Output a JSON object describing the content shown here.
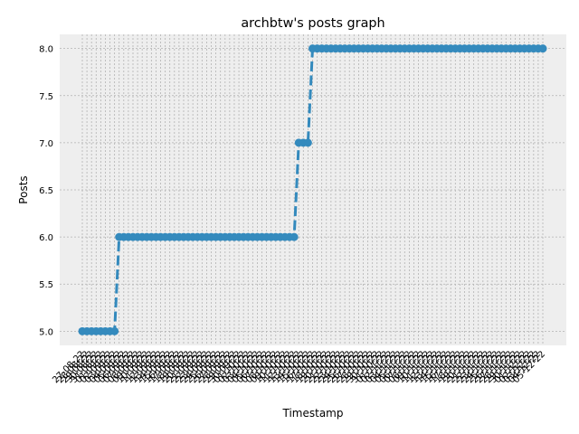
{
  "chart_data": {
    "type": "line",
    "title": "archbtw's posts graph",
    "xlabel": "Timestamp",
    "ylabel": "Posts",
    "ylim": [
      4.85,
      8.15
    ],
    "yticks": [
      "5.0",
      "5.5",
      "6.0",
      "6.5",
      "7.0",
      "7.5",
      "8.0"
    ],
    "grid": true,
    "line_style": "dashed",
    "marker": "circle",
    "colors": {
      "series": "#348abd",
      "plot_bg": "#eeeeee",
      "grid": "#b2b2b2"
    },
    "x": [
      "27-08-22",
      "28-08-22",
      "29-08-22",
      "30-08-22",
      "31-08-22",
      "01-09-22",
      "02-09-22",
      "03-09-22",
      "04-09-22",
      "05-09-22",
      "06-09-22",
      "07-09-22",
      "08-09-22",
      "09-09-22",
      "10-09-22",
      "11-09-22",
      "12-09-22",
      "13-09-22",
      "14-09-22",
      "15-09-22",
      "16-09-22",
      "17-09-22",
      "18-09-22",
      "19-09-22",
      "20-09-22",
      "21-09-22",
      "22-09-22",
      "23-09-22",
      "24-09-22",
      "25-09-22",
      "26-09-22",
      "27-09-22",
      "28-09-22",
      "29-09-22",
      "30-09-22",
      "01-10-22",
      "02-10-22",
      "03-10-22",
      "04-10-22",
      "05-10-22",
      "06-10-22",
      "07-10-22",
      "08-10-22",
      "09-10-22",
      "10-10-22",
      "11-10-22",
      "12-10-22",
      "13-10-22",
      "14-10-22",
      "15-10-22",
      "16-10-22",
      "17-10-22",
      "18-10-22",
      "19-10-22",
      "20-10-22",
      "21-10-22",
      "22-10-22",
      "23-10-22",
      "24-10-22",
      "25-10-22",
      "26-10-22",
      "27-10-22",
      "28-10-22",
      "29-10-22",
      "30-10-22",
      "31-10-22",
      "01-11-22",
      "02-11-22",
      "03-11-22",
      "04-11-22",
      "05-11-22",
      "06-11-22",
      "07-11-22",
      "08-11-22",
      "09-11-22",
      "10-11-22",
      "11-11-22",
      "12-11-22",
      "13-11-22",
      "14-11-22",
      "15-11-22",
      "16-11-22",
      "17-11-22",
      "18-11-22",
      "19-11-22",
      "20-11-22",
      "21-11-22",
      "22-11-22",
      "23-11-22",
      "24-11-22",
      "25-11-22",
      "26-11-22",
      "27-11-22",
      "28-11-22",
      "29-11-22",
      "30-11-22",
      "01-12-22",
      "02-12-22",
      "03-12-22",
      "04-12-22",
      "05-12-22"
    ],
    "series": [
      {
        "values": [
          5,
          5,
          5,
          5,
          5,
          5,
          5,
          5,
          6,
          6,
          6,
          6,
          6,
          6,
          6,
          6,
          6,
          6,
          6,
          6,
          6,
          6,
          6,
          6,
          6,
          6,
          6,
          6,
          6,
          6,
          6,
          6,
          6,
          6,
          6,
          6,
          6,
          6,
          6,
          6,
          6,
          6,
          6,
          6,
          6,
          6,
          6,
          7,
          7,
          7,
          8,
          8,
          8,
          8,
          8,
          8,
          8,
          8,
          8,
          8,
          8,
          8,
          8,
          8,
          8,
          8,
          8,
          8,
          8,
          8,
          8,
          8,
          8,
          8,
          8,
          8,
          8,
          8,
          8,
          8,
          8,
          8,
          8,
          8,
          8,
          8,
          8,
          8,
          8,
          8,
          8,
          8,
          8,
          8,
          8,
          8,
          8,
          8,
          8,
          8,
          8
        ]
      }
    ]
  }
}
